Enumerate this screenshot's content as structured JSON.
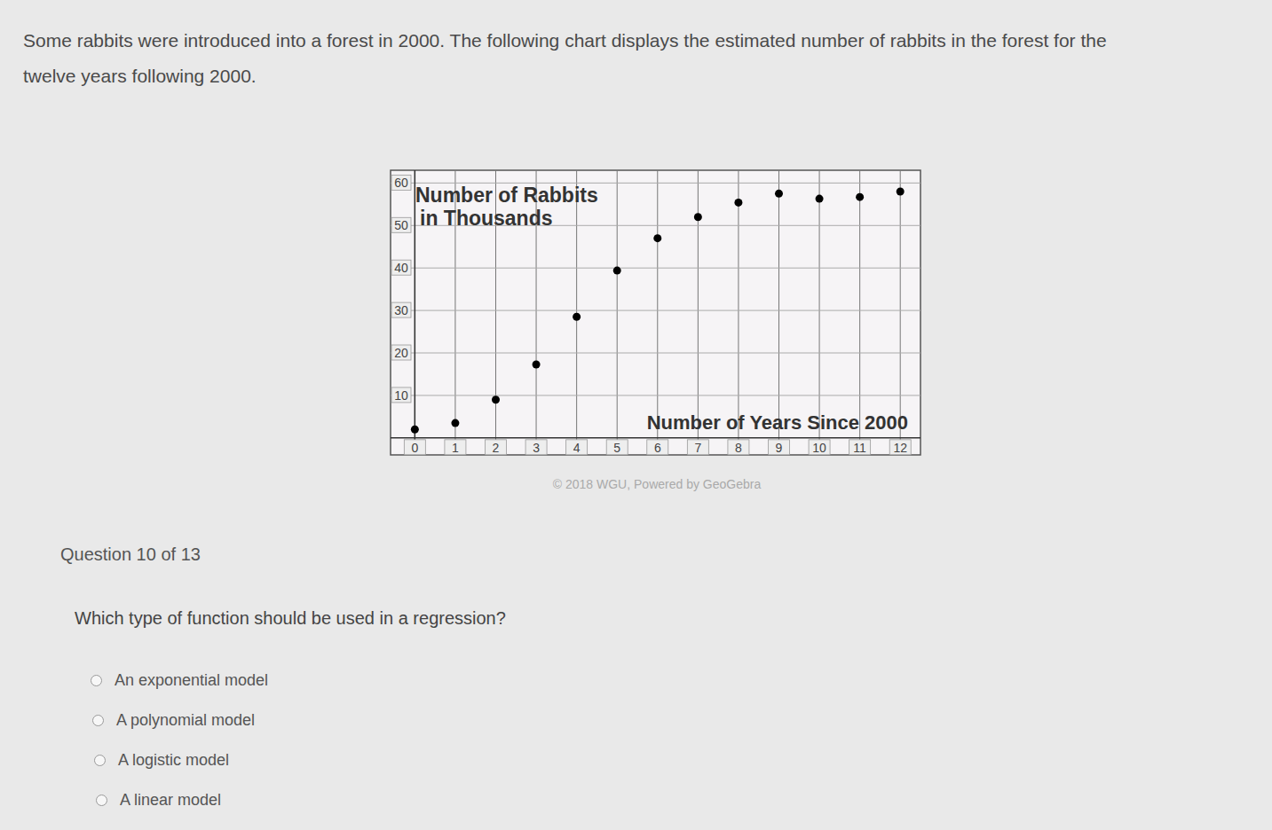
{
  "intro": [
    "Some rabbits were introduced into a forest in 2000. The following chart displays the estimated number of rabbits in the forest for the",
    "twelve years following 2000."
  ],
  "chart_data": {
    "type": "scatter",
    "ylabel": [
      "Number of Rabbits",
      "in Thousands"
    ],
    "xlabel": "Number of Years Since 2000",
    "x": [
      0,
      1,
      2,
      3,
      4,
      5,
      6,
      7,
      8,
      9,
      10,
      11,
      12
    ],
    "values": [
      2,
      3.5,
      9,
      17.3,
      28.5,
      39.4,
      47,
      52,
      55.4,
      57.5,
      56.3,
      56.7,
      58
    ],
    "color": "#000000",
    "marker": "circle",
    "xlim": [
      -0.6,
      12.5
    ],
    "ylim": [
      -4,
      63
    ],
    "xticks": [
      0,
      1,
      2,
      3,
      4,
      5,
      6,
      7,
      8,
      9,
      10,
      11,
      12
    ],
    "yticks": [
      10,
      20,
      30,
      40,
      50,
      60
    ],
    "grid": true
  },
  "credit": "© 2018 WGU, Powered by GeoGebra",
  "question": {
    "number": "Question 10 of 13",
    "prompt": "Which type of function should be used in a regression?",
    "options": [
      "An exponential model",
      "A polynomial model",
      "A logistic model",
      "A linear model"
    ]
  }
}
